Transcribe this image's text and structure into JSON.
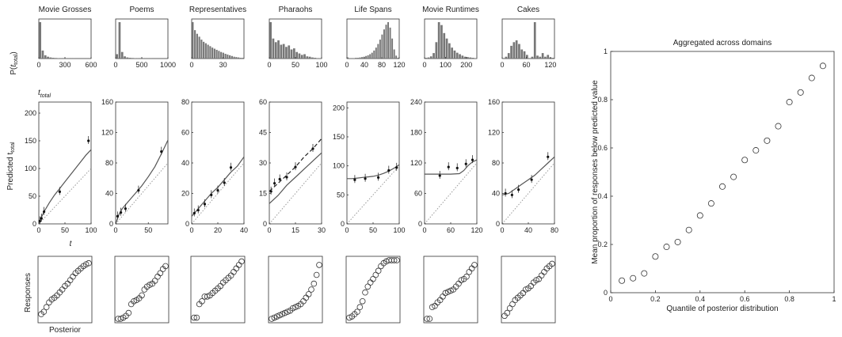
{
  "figure": {
    "row_labels": {
      "hist_ylabel": "P(",
      "hist_ylabel_sub": "t",
      "hist_ylabel_subsub": "total",
      "hist_ylabel_close": ")",
      "hist_xlabel": "t",
      "hist_xlabel_sub": "total",
      "pred_ylabel": "Predicted t",
      "pred_ylabel_sub": "total",
      "pred_xlabel": "t",
      "resp_ylabel": "Responses",
      "resp_xlabel": "Posterior"
    }
  },
  "chart_data": [
    {
      "type": "bar",
      "panel": "histograms",
      "title": "Movie Grosses",
      "xlim": [
        0,
        600
      ],
      "xticks": [
        "0",
        "300",
        "600"
      ],
      "values": [
        1.0,
        0.22,
        0.09,
        0.05,
        0.03,
        0.02,
        0.015,
        0.01,
        0.008,
        0.006,
        0.005,
        0.004,
        0.003,
        0.003,
        0.002,
        0.002,
        0.002,
        0.001,
        0.001,
        0.001
      ]
    },
    {
      "type": "bar",
      "panel": "histograms",
      "title": "Poems",
      "xlim": [
        0,
        1000
      ],
      "xticks": [
        "0",
        "500",
        "1000"
      ],
      "values": [
        0.12,
        1.0,
        0.18,
        0.06,
        0.03,
        0.02,
        0.015,
        0.01,
        0.008,
        0.006,
        0.005,
        0.004,
        0.003,
        0.003,
        0.002,
        0.002,
        0.002,
        0.001,
        0.001,
        0.001
      ]
    },
    {
      "type": "bar",
      "panel": "histograms",
      "title": "Representatives",
      "xlim": [
        0,
        50
      ],
      "xticks": [
        "0",
        "30"
      ],
      "values": [
        1.0,
        0.78,
        0.68,
        0.6,
        0.52,
        0.46,
        0.42,
        0.38,
        0.34,
        0.3,
        0.27,
        0.24,
        0.21,
        0.18,
        0.16,
        0.13,
        0.11,
        0.09,
        0.07,
        0.05,
        0.04,
        0.03,
        0.02,
        0.02
      ]
    },
    {
      "type": "bar",
      "panel": "histograms",
      "title": "Pharaohs",
      "xlim": [
        0,
        100
      ],
      "xticks": [
        "0",
        "50",
        "100"
      ],
      "values": [
        1.0,
        0.55,
        0.45,
        0.5,
        0.38,
        0.4,
        0.32,
        0.36,
        0.25,
        0.28,
        0.18,
        0.14,
        0.1,
        0.12,
        0.06,
        0.05,
        0.03,
        0.02,
        0.01,
        0.01
      ]
    },
    {
      "type": "bar",
      "panel": "histograms",
      "title": "Life Spans",
      "xlim": [
        0,
        120
      ],
      "xticks": [
        "0",
        "40",
        "80",
        "120"
      ],
      "values": [
        0.03,
        0.01,
        0.01,
        0.01,
        0.02,
        0.02,
        0.03,
        0.04,
        0.05,
        0.07,
        0.09,
        0.12,
        0.16,
        0.22,
        0.3,
        0.4,
        0.52,
        0.66,
        0.8,
        0.93,
        1.0,
        0.85,
        0.55,
        0.25,
        0.08,
        0.02
      ]
    },
    {
      "type": "bar",
      "panel": "histograms",
      "title": "Movie Runtimes",
      "xlim": [
        0,
        250
      ],
      "xticks": [
        "0",
        "100",
        "200"
      ],
      "values": [
        0.02,
        0.03,
        0.06,
        0.15,
        0.45,
        1.0,
        0.92,
        0.7,
        0.55,
        0.42,
        0.3,
        0.22,
        0.16,
        0.12,
        0.08,
        0.05,
        0.04,
        0.03,
        0.02,
        0.01
      ]
    },
    {
      "type": "bar",
      "panel": "histograms",
      "title": "Cakes",
      "xlim": [
        0,
        130
      ],
      "xticks": [
        "0",
        "60",
        "120"
      ],
      "values": [
        0.0,
        0.05,
        0.15,
        0.35,
        0.45,
        0.5,
        0.4,
        0.25,
        0.2,
        0.1,
        0.0,
        0.05,
        1.0,
        0.08,
        0.05,
        0.15,
        0.05,
        0.1,
        0.03,
        0.02
      ]
    },
    {
      "type": "line",
      "panel": "predictions",
      "xlim": [
        0,
        100
      ],
      "ylim": [
        0,
        220
      ],
      "xticks": [
        "0",
        "50",
        "100"
      ],
      "yticks": [
        "0",
        "50",
        "100",
        "150",
        "200"
      ],
      "model": [
        [
          0,
          0
        ],
        [
          5,
          12
        ],
        [
          10,
          22
        ],
        [
          20,
          38
        ],
        [
          30,
          52
        ],
        [
          40,
          64
        ],
        [
          50,
          76
        ],
        [
          60,
          88
        ],
        [
          70,
          100
        ],
        [
          80,
          112
        ],
        [
          90,
          124
        ],
        [
          100,
          134
        ]
      ],
      "points": [
        [
          2,
          5
        ],
        [
          5,
          10
        ],
        [
          10,
          22
        ],
        [
          40,
          58
        ],
        [
          95,
          150
        ]
      ]
    },
    {
      "type": "line",
      "panel": "predictions",
      "xlim": [
        0,
        80
      ],
      "ylim": [
        0,
        160
      ],
      "xticks": [
        "0",
        "50"
      ],
      "yticks": [
        "0",
        "40",
        "80",
        "120",
        "160"
      ],
      "model": [
        [
          0,
          0
        ],
        [
          5,
          12
        ],
        [
          10,
          20
        ],
        [
          20,
          30
        ],
        [
          30,
          40
        ],
        [
          40,
          50
        ],
        [
          50,
          62
        ],
        [
          60,
          75
        ],
        [
          70,
          92
        ],
        [
          80,
          110
        ]
      ],
      "points": [
        [
          3,
          10
        ],
        [
          8,
          15
        ],
        [
          15,
          20
        ],
        [
          35,
          44
        ],
        [
          70,
          95
        ]
      ]
    },
    {
      "type": "line",
      "panel": "predictions",
      "xlim": [
        0,
        40
      ],
      "ylim": [
        0,
        80
      ],
      "xticks": [
        "0",
        "20",
        "40"
      ],
      "yticks": [
        "0",
        "20",
        "40",
        "60",
        "80"
      ],
      "model": [
        [
          0,
          5
        ],
        [
          5,
          10
        ],
        [
          10,
          15
        ],
        [
          15,
          20
        ],
        [
          20,
          24
        ],
        [
          25,
          29
        ],
        [
          30,
          34
        ],
        [
          35,
          38
        ],
        [
          40,
          44
        ]
      ],
      "points": [
        [
          2,
          7
        ],
        [
          5,
          9
        ],
        [
          10,
          13
        ],
        [
          15,
          19
        ],
        [
          20,
          22
        ],
        [
          25,
          27
        ],
        [
          30,
          37
        ]
      ]
    },
    {
      "type": "line",
      "panel": "predictions",
      "xlim": [
        0,
        30
      ],
      "ylim": [
        0,
        60
      ],
      "xticks": [
        "0",
        "15",
        "30"
      ],
      "yticks": [
        "0",
        "15",
        "30",
        "45",
        "60"
      ],
      "model": [
        [
          0,
          10
        ],
        [
          5,
          14
        ],
        [
          10,
          19
        ],
        [
          15,
          23
        ],
        [
          20,
          27
        ],
        [
          25,
          31
        ],
        [
          30,
          35
        ]
      ],
      "model_dashed": [
        [
          0,
          16
        ],
        [
          5,
          20
        ],
        [
          10,
          24
        ],
        [
          15,
          28
        ],
        [
          20,
          33
        ],
        [
          25,
          37
        ],
        [
          30,
          42
        ]
      ],
      "points": [
        [
          1,
          16
        ],
        [
          3,
          20
        ],
        [
          6,
          22
        ],
        [
          10,
          23
        ],
        [
          15,
          28
        ],
        [
          25,
          37
        ]
      ]
    },
    {
      "type": "line",
      "panel": "predictions",
      "xlim": [
        0,
        100
      ],
      "ylim": [
        0,
        210
      ],
      "xticks": [
        "0",
        "50",
        "100"
      ],
      "yticks": [
        "0",
        "50",
        "100",
        "150",
        "200"
      ],
      "model": [
        [
          0,
          78
        ],
        [
          10,
          78
        ],
        [
          20,
          79
        ],
        [
          30,
          80
        ],
        [
          40,
          81
        ],
        [
          50,
          82
        ],
        [
          60,
          84
        ],
        [
          70,
          87
        ],
        [
          80,
          91
        ],
        [
          90,
          96
        ],
        [
          100,
          102
        ]
      ],
      "points": [
        [
          15,
          76
        ],
        [
          35,
          78
        ],
        [
          60,
          80
        ],
        [
          80,
          92
        ],
        [
          95,
          97
        ]
      ]
    },
    {
      "type": "line",
      "panel": "predictions",
      "xlim": [
        0,
        120
      ],
      "ylim": [
        0,
        240
      ],
      "xticks": [
        "0",
        "60",
        "120"
      ],
      "yticks": [
        "0",
        "60",
        "120",
        "180",
        "240"
      ],
      "model": [
        [
          0,
          98
        ],
        [
          20,
          98
        ],
        [
          40,
          98
        ],
        [
          60,
          98
        ],
        [
          80,
          99
        ],
        [
          90,
          105
        ],
        [
          100,
          115
        ],
        [
          110,
          122
        ],
        [
          120,
          126
        ]
      ],
      "points": [
        [
          35,
          95
        ],
        [
          55,
          112
        ],
        [
          75,
          110
        ],
        [
          95,
          118
        ],
        [
          110,
          126
        ]
      ]
    },
    {
      "type": "line",
      "panel": "predictions",
      "xlim": [
        0,
        80
      ],
      "ylim": [
        0,
        160
      ],
      "xticks": [
        "0",
        "40",
        "80"
      ],
      "yticks": [
        "0",
        "40",
        "80",
        "120",
        "160"
      ],
      "model": [
        [
          0,
          38
        ],
        [
          10,
          40
        ],
        [
          20,
          46
        ],
        [
          30,
          52
        ],
        [
          40,
          58
        ],
        [
          50,
          64
        ],
        [
          60,
          72
        ],
        [
          70,
          80
        ],
        [
          80,
          88
        ]
      ],
      "points": [
        [
          5,
          40
        ],
        [
          15,
          38
        ],
        [
          25,
          45
        ],
        [
          45,
          58
        ],
        [
          70,
          88
        ]
      ]
    },
    {
      "type": "scatter",
      "panel": "responses",
      "y": [
        0.08,
        0.12,
        0.2,
        0.28,
        0.33,
        0.36,
        0.4,
        0.45,
        0.5,
        0.56,
        0.6,
        0.66,
        0.72,
        0.78,
        0.82,
        0.86,
        0.9,
        0.93,
        0.95
      ]
    },
    {
      "type": "scatter",
      "panel": "responses",
      "y": [
        0.0,
        0.0,
        0.02,
        0.05,
        0.1,
        0.25,
        0.3,
        0.32,
        0.35,
        0.4,
        0.5,
        0.55,
        0.58,
        0.6,
        0.65,
        0.72,
        0.78,
        0.85,
        0.9
      ]
    },
    {
      "type": "scatter",
      "panel": "responses",
      "y": [
        0.02,
        0.02,
        0.25,
        0.3,
        0.38,
        0.38,
        0.4,
        0.44,
        0.48,
        0.52,
        0.56,
        0.62,
        0.66,
        0.7,
        0.74,
        0.8,
        0.86,
        0.92,
        0.98
      ]
    },
    {
      "type": "scatter",
      "panel": "responses",
      "y": [
        0.0,
        0.02,
        0.04,
        0.06,
        0.08,
        0.1,
        0.12,
        0.14,
        0.18,
        0.2,
        0.22,
        0.25,
        0.3,
        0.36,
        0.42,
        0.5,
        0.6,
        0.75,
        0.92
      ]
    },
    {
      "type": "scatter",
      "panel": "responses",
      "y": [
        0.02,
        0.04,
        0.08,
        0.12,
        0.2,
        0.3,
        0.45,
        0.55,
        0.62,
        0.68,
        0.75,
        0.82,
        0.9,
        0.95,
        0.98,
        1.0,
        1.0,
        1.0,
        1.0
      ]
    },
    {
      "type": "scatter",
      "panel": "responses",
      "y": [
        0.0,
        0.0,
        0.2,
        0.22,
        0.28,
        0.32,
        0.38,
        0.44,
        0.46,
        0.48,
        0.5,
        0.55,
        0.6,
        0.66,
        0.68,
        0.72,
        0.8,
        0.86,
        0.92
      ]
    },
    {
      "type": "scatter",
      "panel": "responses",
      "y": [
        0.05,
        0.1,
        0.18,
        0.25,
        0.32,
        0.36,
        0.4,
        0.44,
        0.5,
        0.52,
        0.56,
        0.62,
        0.66,
        0.68,
        0.74,
        0.8,
        0.86,
        0.9,
        0.94
      ]
    },
    {
      "type": "scatter",
      "panel": "aggregate",
      "title": "Aggregated across domains",
      "xlabel": "Quantile of posterior distribution",
      "ylabel": "Mean proportion of responses below predicted value",
      "xlim": [
        0,
        1
      ],
      "ylim": [
        0,
        1
      ],
      "xticks": [
        "0",
        "0.2",
        "0.4",
        "0.6",
        "0.8",
        "1"
      ],
      "yticks": [
        "0",
        "0.2",
        "0.4",
        "0.6",
        "0.8",
        "1"
      ],
      "x": [
        0.05,
        0.1,
        0.15,
        0.2,
        0.25,
        0.3,
        0.35,
        0.4,
        0.45,
        0.5,
        0.55,
        0.6,
        0.65,
        0.7,
        0.75,
        0.8,
        0.85,
        0.9,
        0.95
      ],
      "y": [
        0.05,
        0.06,
        0.08,
        0.15,
        0.19,
        0.21,
        0.26,
        0.32,
        0.37,
        0.44,
        0.48,
        0.55,
        0.59,
        0.63,
        0.69,
        0.79,
        0.83,
        0.89,
        0.94
      ]
    }
  ]
}
